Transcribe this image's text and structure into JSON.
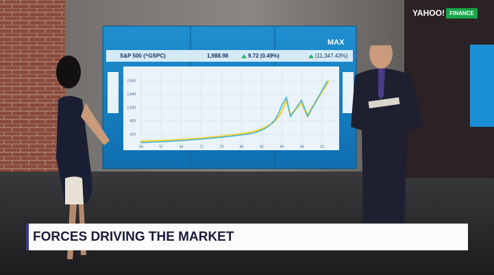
{
  "logo": {
    "brand": "YAHOO!",
    "section": "FINANCE"
  },
  "screen": {
    "range": "MAX",
    "ticker": "S&P 500 (^GSPC)",
    "price": "1,988.98",
    "change": "9.72 (0.49%)",
    "total_change": "(11,347.43%)",
    "y_labels": [
      "2,050",
      "1,640",
      "1,230",
      "820",
      "410"
    ],
    "x_labels": [
      "50",
      "57",
      "64",
      "71",
      "78",
      "85",
      "92",
      "99",
      "06",
      "13"
    ]
  },
  "lower_third": {
    "headline": "FORCES DRIVING THE MARKET"
  }
}
